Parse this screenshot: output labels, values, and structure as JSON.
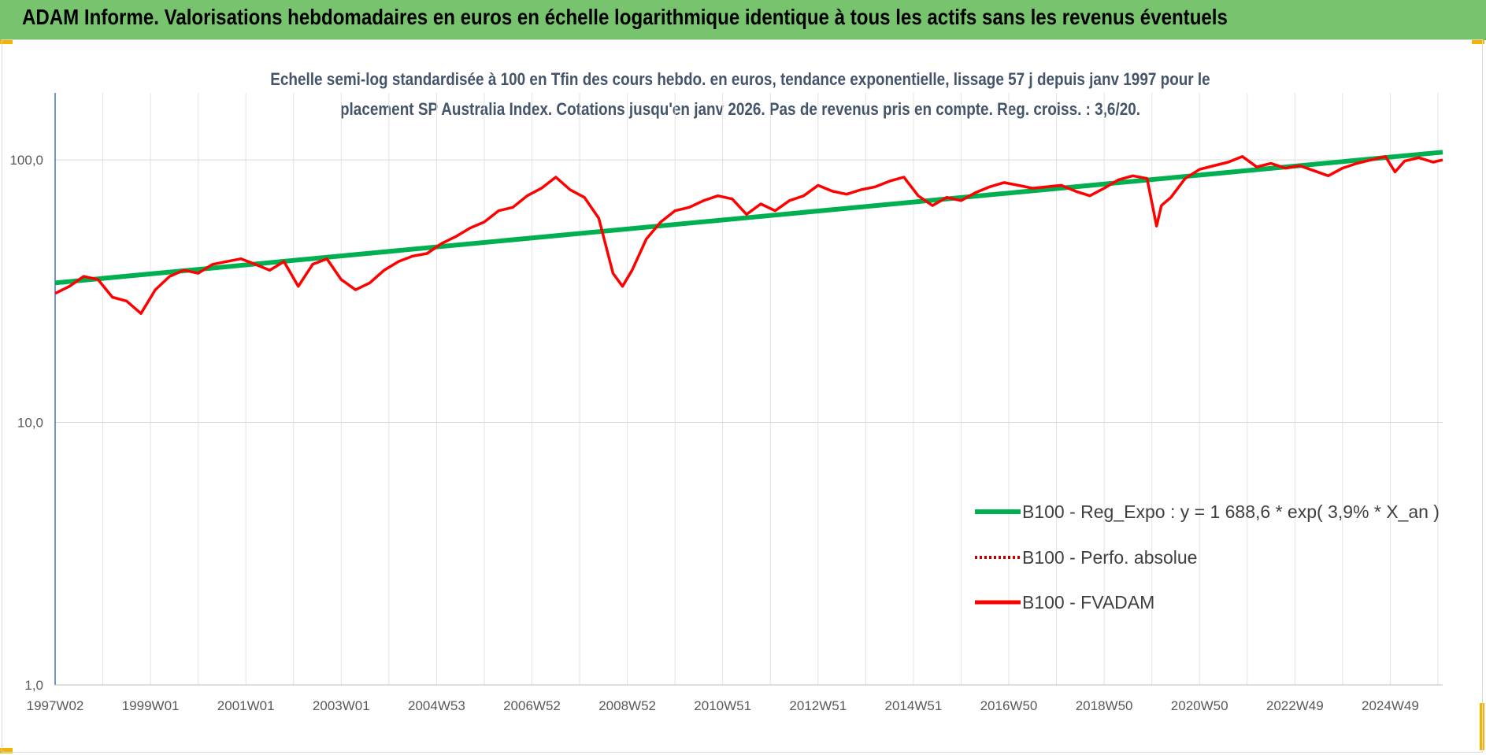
{
  "header": {
    "title": "ADAM Informe. Valorisations hebdomadaires en euros en échelle logarithmique identique à tous les actifs sans les revenus éventuels"
  },
  "colors": {
    "header_bg": "#77c36e",
    "accent_corner": "#f2b400",
    "regression": "#00b050",
    "fvadam": "#ff0000",
    "perfo": "#c00000"
  },
  "chart_data": {
    "type": "line",
    "title_lines": [
      "Echelle semi-log standardisée à 100 en Tfin des cours hebdo. en euros, tendance exponentielle, lissage 57 j depuis janv 1997 pour le",
      "placement SP  Australia Index. Cotations jusqu'en janv 2026. Pas de revenus pris en compte. Reg. croiss. : 3,6/20."
    ],
    "y_scale": "log",
    "ylim": [
      1,
      180
    ],
    "y_ticks": [
      {
        "value": 1,
        "label": "1,0"
      },
      {
        "value": 10,
        "label": "10,0"
      },
      {
        "value": 100,
        "label": "100,0"
      }
    ],
    "xlim": [
      1997.0,
      2026.1
    ],
    "x_ticks": [
      {
        "x": 1997.0,
        "label": "1997W02"
      },
      {
        "x": 1999.0,
        "label": "1999W01"
      },
      {
        "x": 2001.0,
        "label": "2001W01"
      },
      {
        "x": 2003.0,
        "label": "2003W01"
      },
      {
        "x": 2005.0,
        "label": "2004W53"
      },
      {
        "x": 2007.0,
        "label": "2006W52"
      },
      {
        "x": 2009.0,
        "label": "2008W52"
      },
      {
        "x": 2011.0,
        "label": "2010W51"
      },
      {
        "x": 2013.0,
        "label": "2012W51"
      },
      {
        "x": 2015.0,
        "label": "2014W51"
      },
      {
        "x": 2017.0,
        "label": "2016W50"
      },
      {
        "x": 2019.0,
        "label": "2018W50"
      },
      {
        "x": 2021.0,
        "label": "2020W50"
      },
      {
        "x": 2023.0,
        "label": "2022W49"
      },
      {
        "x": 2025.0,
        "label": "2024W49"
      }
    ],
    "grid": true,
    "legend_position": "bottom-right",
    "series": [
      {
        "name": "B100 - Reg_Expo : y = 1 688,6 * exp( 3,9% *  X_an )",
        "style": "solid-green",
        "x": [
          1997.0,
          2026.1
        ],
        "y": [
          34,
          107
        ]
      },
      {
        "name": "B100 - Perfo. absolue",
        "style": "dotted-red",
        "x": [],
        "y": []
      },
      {
        "name": "B100 - FVADAM",
        "style": "solid-red",
        "x": [
          1997.0,
          1997.3,
          1997.6,
          1997.9,
          1998.2,
          1998.5,
          1998.8,
          1999.1,
          1999.4,
          1999.7,
          2000.0,
          2000.3,
          2000.6,
          2000.9,
          2001.2,
          2001.5,
          2001.8,
          2002.1,
          2002.4,
          2002.7,
          2003.0,
          2003.3,
          2003.6,
          2003.9,
          2004.2,
          2004.5,
          2004.8,
          2005.1,
          2005.4,
          2005.7,
          2006.0,
          2006.3,
          2006.6,
          2006.9,
          2007.2,
          2007.5,
          2007.8,
          2008.1,
          2008.4,
          2008.7,
          2008.9,
          2009.1,
          2009.4,
          2009.7,
          2010.0,
          2010.3,
          2010.6,
          2010.9,
          2011.2,
          2011.5,
          2011.8,
          2012.1,
          2012.4,
          2012.7,
          2013.0,
          2013.3,
          2013.6,
          2013.9,
          2014.2,
          2014.5,
          2014.8,
          2015.1,
          2015.4,
          2015.7,
          2016.0,
          2016.3,
          2016.6,
          2016.9,
          2017.2,
          2017.5,
          2017.8,
          2018.1,
          2018.4,
          2018.7,
          2019.0,
          2019.3,
          2019.6,
          2019.9,
          2020.1,
          2020.2,
          2020.4,
          2020.7,
          2021.0,
          2021.3,
          2021.6,
          2021.9,
          2022.2,
          2022.5,
          2022.8,
          2023.1,
          2023.4,
          2023.7,
          2024.0,
          2024.3,
          2024.6,
          2024.9,
          2025.1,
          2025.3,
          2025.6,
          2025.9,
          2026.1
        ],
        "y": [
          31,
          33,
          36,
          35,
          30,
          29,
          26,
          32,
          36,
          38,
          37,
          40,
          41,
          42,
          40,
          38,
          41,
          33,
          40,
          42,
          35,
          32,
          34,
          38,
          41,
          43,
          44,
          48,
          51,
          55,
          58,
          64,
          66,
          73,
          78,
          86,
          77,
          72,
          60,
          37,
          33,
          38,
          50,
          58,
          64,
          66,
          70,
          73,
          71,
          62,
          68,
          64,
          70,
          73,
          80,
          76,
          74,
          77,
          79,
          83,
          86,
          73,
          67,
          72,
          70,
          75,
          79,
          82,
          80,
          78,
          79,
          80,
          76,
          73,
          78,
          84,
          87,
          85,
          56,
          67,
          72,
          85,
          92,
          95,
          98,
          103,
          94,
          97,
          93,
          95,
          91,
          87,
          93,
          97,
          100,
          103,
          90,
          99,
          102,
          98,
          100
        ]
      }
    ]
  }
}
